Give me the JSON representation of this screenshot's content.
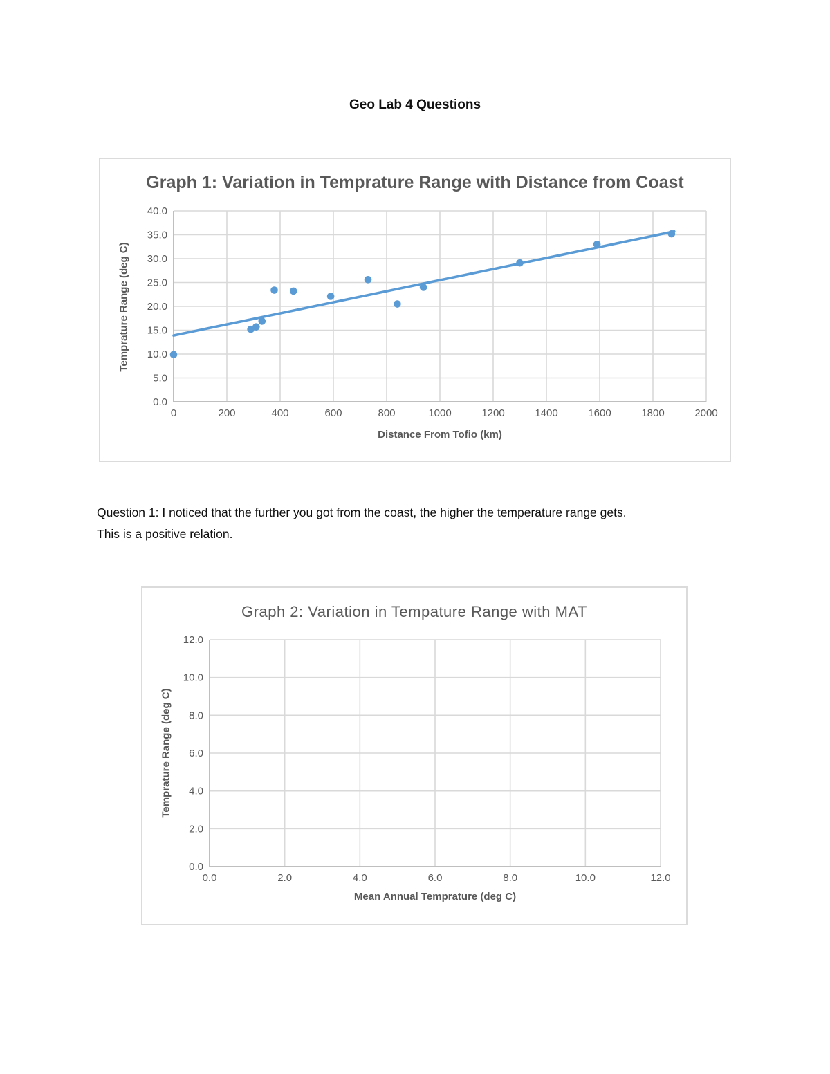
{
  "page": {
    "title": "Geo Lab 4 Questions"
  },
  "question1": {
    "lines": [
      "Question 1: I noticed that the further you got from the coast, the higher the temperature range gets.",
      "This is a positive relation."
    ]
  },
  "colors": {
    "accent_blue": "#5B9BD5",
    "gridline": "#D9D9D9",
    "axis_line": "#BFBFBF",
    "text_gray": "#595959",
    "frame_border": "#DBDBDB"
  },
  "chart_data": [
    {
      "type": "scatter",
      "title": "Graph 1: Variation in Temprature Range with Distance from Coast",
      "xlabel": "Distance From Tofio (km)",
      "ylabel": "Temprature Range (deg C)",
      "xlim": [
        0,
        2000
      ],
      "ylim": [
        0,
        40
      ],
      "xticks": [
        "0",
        "200",
        "400",
        "600",
        "800",
        "1000",
        "1200",
        "1400",
        "1600",
        "1800",
        "2000"
      ],
      "yticks": [
        "0.0",
        "5.0",
        "10.0",
        "15.0",
        "20.0",
        "25.0",
        "30.0",
        "35.0",
        "40.0"
      ],
      "grid": true,
      "legend": "none",
      "points": [
        [
          0,
          9.9
        ],
        [
          290,
          15.2
        ],
        [
          310,
          15.7
        ],
        [
          332,
          16.9
        ],
        [
          378,
          23.4
        ],
        [
          450,
          23.2
        ],
        [
          590,
          22.1
        ],
        [
          730,
          25.6
        ],
        [
          840,
          20.5
        ],
        [
          938,
          24.0
        ],
        [
          1300,
          29.1
        ],
        [
          1590,
          33.0
        ],
        [
          1870,
          35.2
        ]
      ],
      "trendline": {
        "x1": 0,
        "y1": 13.9,
        "x2": 1880,
        "y2": 35.7
      }
    },
    {
      "type": "scatter",
      "title": "Graph 2: Variation in Tempature Range with MAT",
      "xlabel": "Mean Annual Temprature (deg C)",
      "ylabel": "Temprature Range (deg C)",
      "xlim": [
        0,
        12
      ],
      "ylim": [
        0,
        12
      ],
      "xticks": [
        "0.0",
        "2.0",
        "4.0",
        "6.0",
        "8.0",
        "10.0",
        "12.0"
      ],
      "yticks": [
        "0.0",
        "2.0",
        "4.0",
        "6.0",
        "8.0",
        "10.0",
        "12.0"
      ],
      "grid": true,
      "legend": "none",
      "points": [],
      "trendline": null
    }
  ]
}
